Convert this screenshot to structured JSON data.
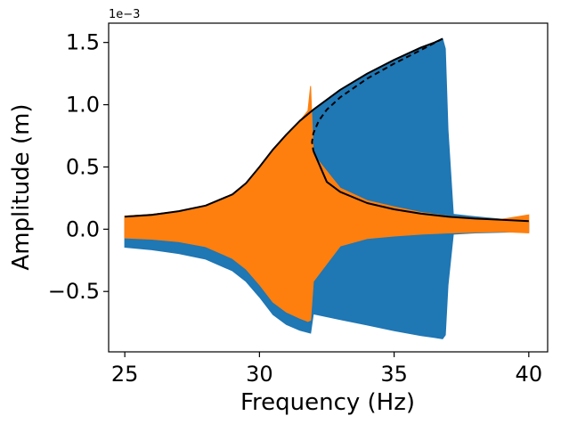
{
  "chart_data": {
    "type": "line",
    "title": "",
    "xlabel": "Frequency (Hz)",
    "ylabel": "Amplitude (m)",
    "offset_label": "1e−3",
    "xlim": [
      24.4,
      40.7
    ],
    "ylim": [
      -0.000985,
      0.001655
    ],
    "x_ticks": [
      25,
      30,
      35,
      40
    ],
    "x_tick_labels": [
      "25",
      "30",
      "35",
      "40"
    ],
    "y_ticks": [
      -0.0005,
      0,
      0.0005,
      0.001,
      0.0015
    ],
    "y_tick_labels": [
      "−0.5",
      "0.0",
      "0.5",
      "1.0",
      "1.5"
    ],
    "grid": false,
    "legend": "none",
    "series": [
      {
        "style": "filled-oscillation",
        "color": "#1f77b4",
        "x": [
          25.0,
          26.0,
          27.0,
          28.0,
          29.0,
          29.5,
          30.0,
          30.5,
          31.0,
          31.5,
          31.9,
          32.0,
          33.0,
          34.0,
          35.0,
          36.0,
          36.5,
          36.8,
          36.9,
          37.0,
          37.2,
          38.0,
          39.0,
          40.0
        ],
        "upper": [
          0.000105,
          0.00012,
          0.000145,
          0.00019,
          0.00028,
          0.00037,
          0.0005,
          0.00064,
          0.00076,
          0.00087,
          0.00094,
          0.00096,
          0.00112,
          0.00125,
          0.00136,
          0.00146,
          0.0015,
          0.00153,
          0.00145,
          0.0008,
          0.00012,
          0.0001,
          8e-05,
          6.5e-05
        ],
        "lower": [
          -0.000145,
          -0.000165,
          -0.000195,
          -0.00024,
          -0.000335,
          -0.00042,
          -0.000545,
          -0.000685,
          -0.000765,
          -0.000812,
          -0.000835,
          -0.00068,
          -0.000725,
          -0.00077,
          -0.000815,
          -0.000855,
          -0.00087,
          -0.00088,
          -0.00085,
          -0.00045,
          -4e-05,
          -3e-05,
          -2.5e-05,
          -2e-05
        ]
      },
      {
        "style": "filled-oscillation",
        "color": "#ff7f0e",
        "x": [
          25.0,
          26.0,
          27.0,
          28.0,
          29.0,
          29.5,
          30.0,
          30.5,
          31.0,
          31.5,
          31.8,
          31.9,
          32.0,
          33.0,
          34.0,
          35.0,
          36.0,
          37.0,
          38.0,
          39.0,
          40.0
        ],
        "upper": [
          0.000105,
          0.00012,
          0.000145,
          0.00019,
          0.00028,
          0.00037,
          0.0005,
          0.00064,
          0.00076,
          0.00087,
          0.00095,
          0.00115,
          0.0006,
          0.00033,
          0.00023,
          0.00018,
          0.000135,
          0.000105,
          9e-05,
          8e-05,
          0.000115
        ],
        "lower": [
          -7e-05,
          -8e-05,
          -0.0001,
          -0.00014,
          -0.000235,
          -0.00032,
          -0.000445,
          -0.000585,
          -0.000665,
          -0.000715,
          -0.00074,
          -0.00073,
          -0.00042,
          -0.000135,
          -7.5e-05,
          -5.5e-05,
          -4e-05,
          -3e-05,
          -2.5e-05,
          -2e-05,
          -3e-05
        ]
      },
      {
        "style": "solid",
        "color": "#000000",
        "x": [
          25.0,
          26.0,
          27.0,
          28.0,
          29.0,
          29.5,
          30.0,
          30.5,
          31.0,
          31.5,
          32.0,
          33.0,
          34.0,
          35.0,
          36.0,
          36.5,
          36.8
        ],
        "y": [
          0.0001,
          0.000115,
          0.000145,
          0.00019,
          0.00028,
          0.00037,
          0.0005,
          0.00064,
          0.00076,
          0.00087,
          0.00096,
          0.00112,
          0.00125,
          0.00136,
          0.00146,
          0.0015,
          0.00153
        ]
      },
      {
        "style": "dashed",
        "color": "#000000",
        "x": [
          36.8,
          36.0,
          35.0,
          34.0,
          33.0,
          32.5,
          32.2,
          32.0,
          31.95,
          32.0
        ],
        "y": [
          0.00153,
          0.00144,
          0.00133,
          0.00121,
          0.00106,
          0.00096,
          0.00087,
          0.00077,
          0.0007,
          0.00063
        ]
      },
      {
        "style": "solid",
        "color": "#000000",
        "x": [
          32.0,
          32.5,
          33.0,
          34.0,
          35.0,
          36.0,
          37.0,
          38.0,
          39.0,
          40.0
        ],
        "y": [
          0.00063,
          0.00038,
          0.0003,
          0.00021,
          0.00016,
          0.000125,
          0.0001,
          8.5e-05,
          7.5e-05,
          6.5e-05
        ]
      }
    ]
  }
}
